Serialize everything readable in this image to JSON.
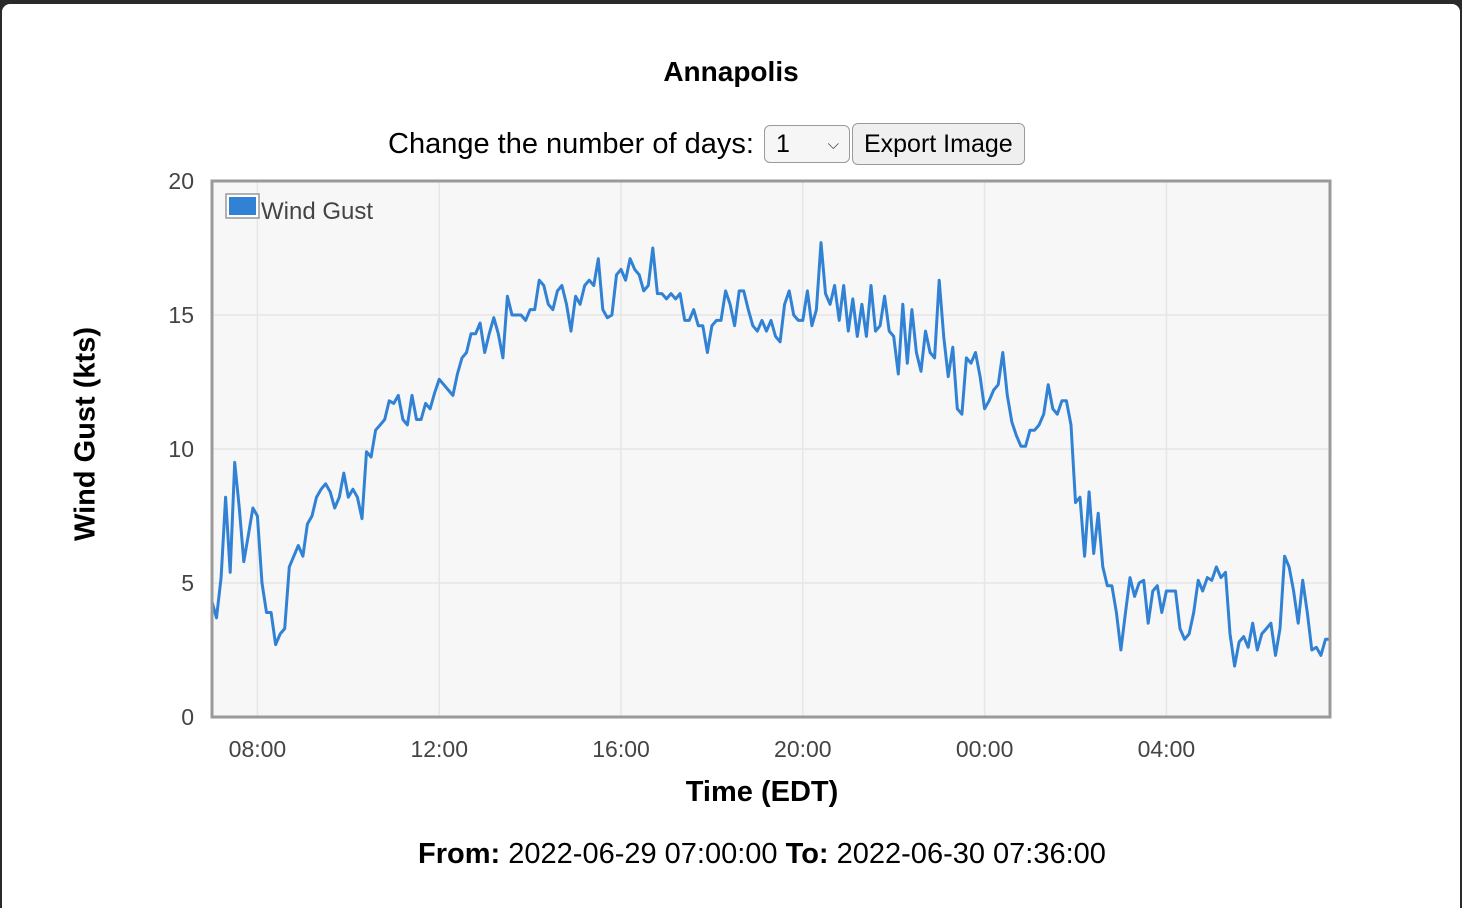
{
  "title": "Annapolis",
  "controls": {
    "days_label": "Change the number of days:",
    "days_value": "1",
    "export_label": "Export Image"
  },
  "range": {
    "from_label": "From:",
    "from_value": "2022-06-29 07:00:00",
    "to_label": "To:",
    "to_value": "2022-06-30 07:36:00"
  },
  "colors": {
    "series": "#3182d4",
    "plot_bg": "#f7f7f7",
    "grid": "#e6e6e6",
    "frame": "#9a9a9a"
  },
  "chart_data": {
    "type": "line",
    "title": "Annapolis",
    "xlabel": "Time (EDT)",
    "ylabel": "Wind Gust (kts)",
    "ylim": [
      0,
      20
    ],
    "yticks": [
      0,
      5,
      10,
      15,
      20
    ],
    "xlim_hours": [
      7.0,
      31.6
    ],
    "xticks": [
      {
        "h": 8,
        "label": "08:00"
      },
      {
        "h": 12,
        "label": "12:00"
      },
      {
        "h": 16,
        "label": "16:00"
      },
      {
        "h": 20,
        "label": "20:00"
      },
      {
        "h": 24,
        "label": "00:00"
      },
      {
        "h": 28,
        "label": "04:00"
      }
    ],
    "grid": true,
    "legend": "top-left",
    "series": [
      {
        "name": "Wind Gust",
        "x_start_hours": 7.0,
        "x_step_hours": 0.1,
        "values": [
          4.3,
          3.7,
          5.2,
          8.2,
          5.4,
          9.5,
          7.8,
          5.8,
          6.8,
          7.8,
          7.5,
          5.0,
          3.9,
          3.9,
          2.7,
          3.1,
          3.3,
          5.6,
          6.0,
          6.4,
          6.0,
          7.2,
          7.5,
          8.2,
          8.5,
          8.7,
          8.4,
          7.8,
          8.2,
          9.1,
          8.2,
          8.5,
          8.2,
          7.4,
          9.9,
          9.7,
          10.7,
          10.9,
          11.1,
          11.8,
          11.7,
          12.0,
          11.1,
          10.9,
          12.0,
          11.1,
          11.1,
          11.7,
          11.5,
          12.1,
          12.6,
          12.4,
          12.2,
          12.0,
          12.8,
          13.4,
          13.6,
          14.3,
          14.3,
          14.7,
          13.6,
          14.3,
          14.9,
          14.3,
          13.4,
          15.7,
          15.0,
          15.0,
          15.0,
          14.8,
          15.2,
          15.2,
          16.3,
          16.1,
          15.4,
          15.2,
          15.9,
          16.1,
          15.4,
          14.4,
          15.7,
          15.4,
          16.1,
          16.3,
          16.1,
          17.1,
          15.2,
          14.9,
          15.0,
          16.5,
          16.7,
          16.3,
          17.1,
          16.7,
          16.5,
          15.9,
          16.1,
          17.5,
          15.8,
          15.8,
          15.6,
          15.8,
          15.6,
          15.8,
          14.8,
          14.8,
          15.2,
          14.6,
          14.6,
          13.6,
          14.6,
          14.8,
          14.8,
          15.9,
          15.4,
          14.6,
          15.9,
          15.9,
          15.2,
          14.6,
          14.4,
          14.8,
          14.4,
          14.8,
          14.2,
          14.0,
          15.4,
          15.9,
          15.0,
          14.8,
          14.8,
          15.9,
          14.6,
          15.2,
          17.7,
          15.8,
          15.4,
          16.1,
          14.8,
          16.1,
          14.4,
          15.6,
          14.2,
          15.4,
          14.2,
          16.1,
          14.4,
          14.6,
          15.7,
          14.4,
          14.2,
          12.8,
          15.4,
          13.2,
          15.2,
          13.6,
          12.9,
          14.4,
          13.6,
          13.4,
          16.3,
          14.2,
          12.7,
          13.8,
          11.5,
          11.3,
          13.4,
          13.2,
          13.6,
          12.7,
          11.5,
          11.8,
          12.2,
          12.4,
          13.6,
          12.0,
          11.0,
          10.5,
          10.1,
          10.1,
          10.7,
          10.7,
          10.9,
          11.3,
          12.4,
          11.5,
          11.3,
          11.8,
          11.8,
          10.9,
          8.0,
          8.2,
          6.0,
          8.4,
          6.1,
          7.6,
          5.6,
          4.9,
          4.9,
          3.9,
          2.5,
          3.9,
          5.2,
          4.5,
          5.0,
          5.1,
          3.5,
          4.7,
          4.9,
          3.9,
          4.7,
          4.7,
          4.7,
          3.3,
          2.9,
          3.1,
          3.9,
          5.1,
          4.7,
          5.2,
          5.1,
          5.6,
          5.2,
          5.4,
          3.1,
          1.9,
          2.8,
          3.0,
          2.6,
          3.5,
          2.5,
          3.1,
          3.3,
          3.5,
          2.3,
          3.3,
          6.0,
          5.6,
          4.7,
          3.5,
          5.1,
          3.9,
          2.5,
          2.6,
          2.3,
          2.9,
          2.9
        ]
      }
    ]
  }
}
